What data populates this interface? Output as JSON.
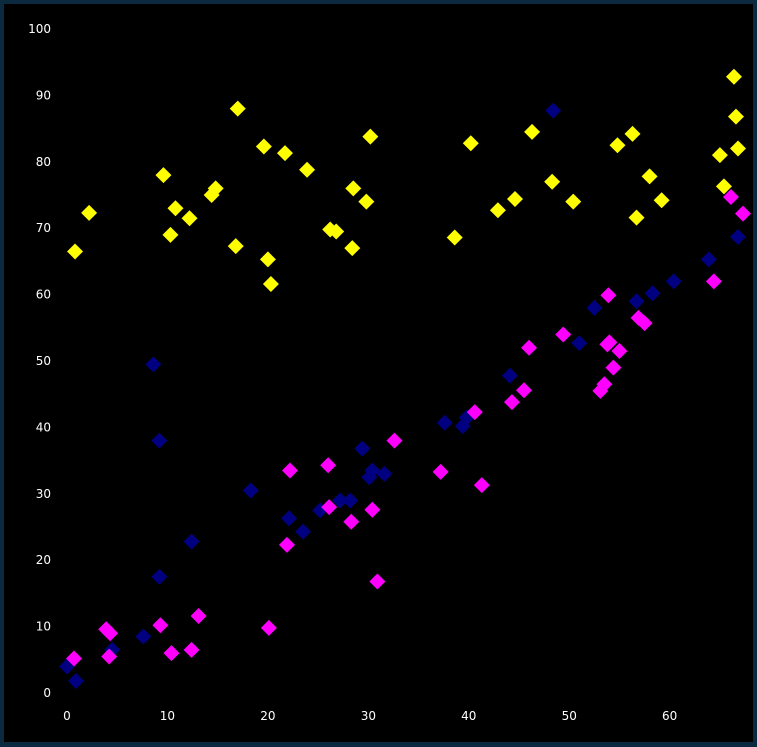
{
  "chart_data": {
    "type": "scatter",
    "title": "",
    "xlabel": "",
    "ylabel": "",
    "xlim": [
      0,
      67
    ],
    "ylim": [
      0,
      100
    ],
    "x_ticks": [
      "0",
      "10",
      "20",
      "30",
      "40",
      "50",
      "60"
    ],
    "y_ticks": [
      "0",
      "10",
      "20",
      "30",
      "40",
      "50",
      "60",
      "70",
      "80",
      "90",
      "100"
    ],
    "grid": false,
    "legend": "none",
    "background": "#000000",
    "frame_color": "#0b2a40",
    "marker": "diamond",
    "series": [
      {
        "color": "#ffff00",
        "points": [
          [
            0.8,
            66.5
          ],
          [
            2.2,
            72.3
          ],
          [
            9.6,
            78.0
          ],
          [
            10.3,
            69.0
          ],
          [
            10.8,
            73.0
          ],
          [
            12.2,
            71.5
          ],
          [
            14.4,
            75.0
          ],
          [
            14.8,
            76.0
          ],
          [
            16.8,
            67.3
          ],
          [
            17.0,
            88.0
          ],
          [
            19.6,
            82.3
          ],
          [
            20.0,
            65.3
          ],
          [
            20.3,
            61.6
          ],
          [
            21.7,
            81.3
          ],
          [
            23.9,
            78.8
          ],
          [
            26.2,
            69.8
          ],
          [
            26.8,
            69.5
          ],
          [
            28.4,
            67.0
          ],
          [
            28.5,
            76.0
          ],
          [
            29.8,
            74.0
          ],
          [
            30.2,
            83.8
          ],
          [
            38.6,
            68.6
          ],
          [
            40.2,
            82.8
          ],
          [
            42.9,
            72.7
          ],
          [
            44.6,
            74.4
          ],
          [
            46.3,
            84.5
          ],
          [
            48.3,
            77.0
          ],
          [
            50.4,
            74.0
          ],
          [
            54.8,
            82.5
          ],
          [
            56.3,
            84.2
          ],
          [
            56.7,
            71.6
          ],
          [
            58.0,
            77.8
          ],
          [
            59.2,
            74.2
          ],
          [
            65.0,
            81.0
          ],
          [
            65.4,
            76.3
          ],
          [
            66.4,
            92.8
          ],
          [
            66.6,
            86.8
          ],
          [
            66.8,
            82.0
          ]
        ]
      },
      {
        "color": "#000080",
        "points": [
          [
            0.0,
            4.0
          ],
          [
            0.9,
            1.8
          ],
          [
            4.5,
            6.5
          ],
          [
            7.6,
            8.5
          ],
          [
            8.6,
            49.5
          ],
          [
            9.2,
            38.0
          ],
          [
            9.2,
            17.5
          ],
          [
            12.4,
            22.8
          ],
          [
            18.3,
            30.5
          ],
          [
            22.1,
            26.3
          ],
          [
            23.5,
            24.3
          ],
          [
            25.2,
            27.5
          ],
          [
            27.2,
            29.0
          ],
          [
            28.2,
            29.0
          ],
          [
            29.4,
            36.8
          ],
          [
            30.1,
            32.5
          ],
          [
            30.4,
            33.5
          ],
          [
            31.6,
            33.0
          ],
          [
            37.6,
            40.7
          ],
          [
            39.4,
            40.2
          ],
          [
            39.8,
            41.5
          ],
          [
            44.1,
            47.8
          ],
          [
            48.4,
            87.7
          ],
          [
            51.0,
            52.7
          ],
          [
            52.5,
            58.0
          ],
          [
            56.7,
            59.0
          ],
          [
            58.3,
            60.2
          ],
          [
            60.4,
            62.0
          ],
          [
            63.9,
            65.3
          ],
          [
            66.8,
            68.7
          ]
        ]
      },
      {
        "color": "#ff00ff",
        "points": [
          [
            0.7,
            5.2
          ],
          [
            3.9,
            9.6
          ],
          [
            4.2,
            5.5
          ],
          [
            4.3,
            9.0
          ],
          [
            9.3,
            10.2
          ],
          [
            10.4,
            6.0
          ],
          [
            12.4,
            6.5
          ],
          [
            13.1,
            11.6
          ],
          [
            20.1,
            9.8
          ],
          [
            21.9,
            22.3
          ],
          [
            22.2,
            33.5
          ],
          [
            26.0,
            34.3
          ],
          [
            26.1,
            28.0
          ],
          [
            28.3,
            25.8
          ],
          [
            30.4,
            27.6
          ],
          [
            30.9,
            16.8
          ],
          [
            32.6,
            38.0
          ],
          [
            37.2,
            33.3
          ],
          [
            40.6,
            42.3
          ],
          [
            41.3,
            31.3
          ],
          [
            44.3,
            43.8
          ],
          [
            45.5,
            45.6
          ],
          [
            46.0,
            52.0
          ],
          [
            49.4,
            54.0
          ],
          [
            53.1,
            45.5
          ],
          [
            53.5,
            46.5
          ],
          [
            53.8,
            52.5
          ],
          [
            53.9,
            59.9
          ],
          [
            54.0,
            52.8
          ],
          [
            54.4,
            49.0
          ],
          [
            55.0,
            51.5
          ],
          [
            56.9,
            56.5
          ],
          [
            57.5,
            55.7
          ],
          [
            64.4,
            62.0
          ],
          [
            66.1,
            74.7
          ],
          [
            67.3,
            72.2
          ]
        ]
      }
    ]
  }
}
